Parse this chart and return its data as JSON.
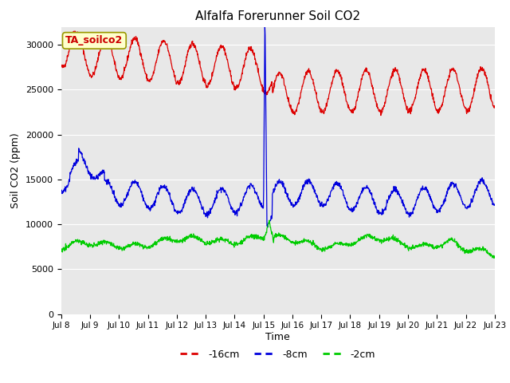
{
  "title": "Alfalfa Forerunner Soil CO2",
  "xlabel": "Time",
  "ylabel": "Soil CO2 (ppm)",
  "ylim": [
    0,
    32000
  ],
  "fig_bg": "#ffffff",
  "plot_bg": "#e8e8e8",
  "label_box_text": "TA_soilco2",
  "label_box_facecolor": "#ffffcc",
  "label_box_edgecolor": "#999900",
  "label_text_color": "#cc0000",
  "series": [
    {
      "label": "-16cm",
      "color": "#dd0000"
    },
    {
      "label": "-8cm",
      "color": "#0000dd"
    },
    {
      "label": "-2cm",
      "color": "#00cc00"
    }
  ],
  "xtick_labels": [
    "Jul 8",
    "Jul 9",
    "Jul 10",
    "Jul 11",
    "Jul 12",
    "Jul 13",
    "Jul 14",
    "Jul 15",
    "Jul 16",
    "Jul 17",
    "Jul 18",
    "Jul 19",
    "Jul 20",
    "Jul 21",
    "Jul 22",
    "Jul 23"
  ],
  "yticks": [
    0,
    5000,
    10000,
    15000,
    20000,
    25000,
    30000
  ],
  "n_days": 15,
  "seed": 42
}
